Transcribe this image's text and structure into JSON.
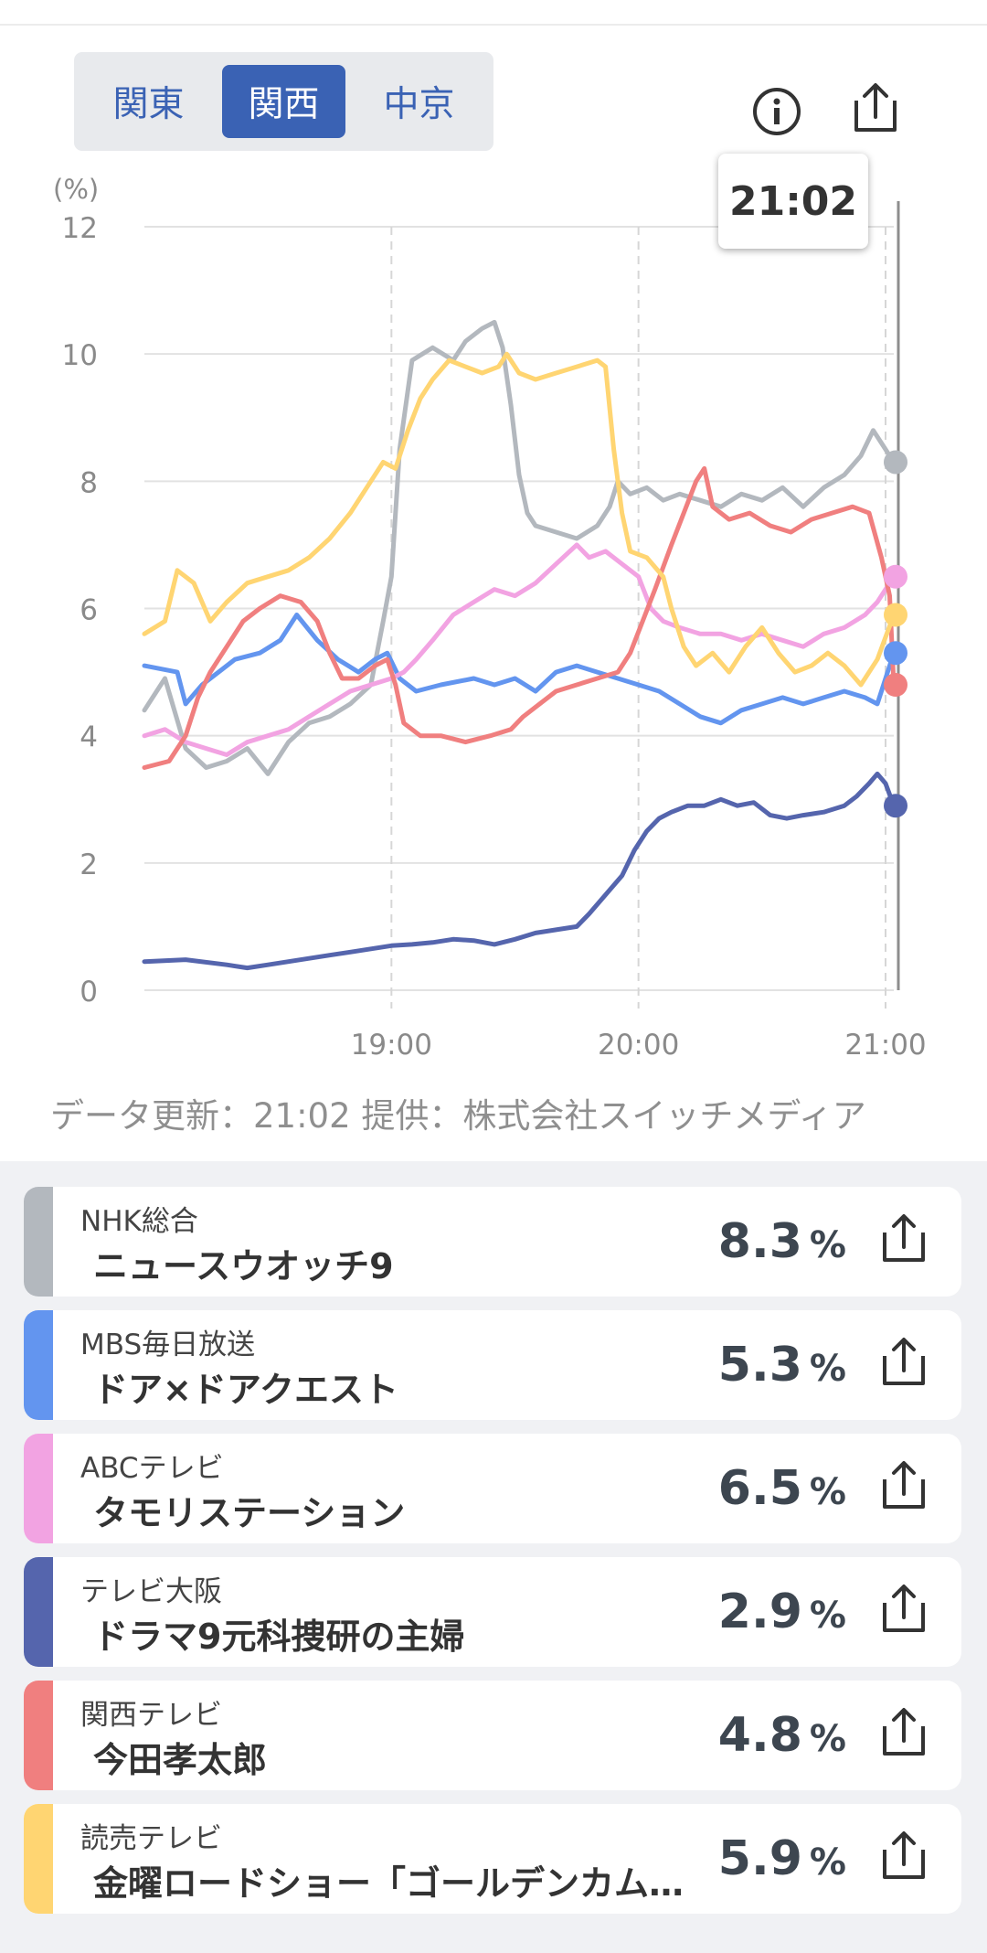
{
  "regions": [
    "関東",
    "関西",
    "中京"
  ],
  "active_region": "関西",
  "tooltip_time": "21:02",
  "chart_data": {
    "type": "line",
    "ylabel": "(%)",
    "ylim": [
      0,
      12
    ],
    "yticks": [
      "0",
      "2",
      "4",
      "6",
      "8",
      "10",
      "12"
    ],
    "xlabels": [
      {
        "t": 60,
        "label": "19:00"
      },
      {
        "t": 120,
        "label": "20:00"
      },
      {
        "t": 180,
        "label": "21:00"
      }
    ],
    "x_range_minutes": [
      0,
      182
    ],
    "series": [
      {
        "name": "NHK総合",
        "color": "#b3b8be",
        "end": 8.3,
        "points": [
          [
            0,
            4.4
          ],
          [
            5,
            4.9
          ],
          [
            10,
            3.8
          ],
          [
            15,
            3.5
          ],
          [
            20,
            3.6
          ],
          [
            25,
            3.8
          ],
          [
            30,
            3.4
          ],
          [
            35,
            3.9
          ],
          [
            40,
            4.2
          ],
          [
            45,
            4.3
          ],
          [
            50,
            4.5
          ],
          [
            55,
            4.8
          ],
          [
            58,
            5.8
          ],
          [
            60,
            6.5
          ],
          [
            62,
            8.5
          ],
          [
            65,
            9.9
          ],
          [
            70,
            10.1
          ],
          [
            75,
            9.9
          ],
          [
            78,
            10.2
          ],
          [
            82,
            10.4
          ],
          [
            85,
            10.5
          ],
          [
            87,
            10.1
          ],
          [
            89,
            9.2
          ],
          [
            91,
            8.1
          ],
          [
            93,
            7.5
          ],
          [
            95,
            7.3
          ],
          [
            100,
            7.2
          ],
          [
            105,
            7.1
          ],
          [
            110,
            7.3
          ],
          [
            113,
            7.6
          ],
          [
            115,
            8.0
          ],
          [
            118,
            7.8
          ],
          [
            122,
            7.9
          ],
          [
            126,
            7.7
          ],
          [
            130,
            7.8
          ],
          [
            135,
            7.7
          ],
          [
            140,
            7.6
          ],
          [
            145,
            7.8
          ],
          [
            150,
            7.7
          ],
          [
            155,
            7.9
          ],
          [
            160,
            7.6
          ],
          [
            165,
            7.9
          ],
          [
            170,
            8.1
          ],
          [
            174,
            8.4
          ],
          [
            177,
            8.8
          ],
          [
            180,
            8.5
          ],
          [
            182,
            8.3
          ]
        ]
      },
      {
        "name": "MBS毎日放送",
        "color": "#6395ef",
        "end": 5.3,
        "points": [
          [
            0,
            5.1
          ],
          [
            8,
            5.0
          ],
          [
            10,
            4.5
          ],
          [
            14,
            4.8
          ],
          [
            18,
            5.0
          ],
          [
            22,
            5.2
          ],
          [
            28,
            5.3
          ],
          [
            33,
            5.5
          ],
          [
            37,
            5.9
          ],
          [
            42,
            5.5
          ],
          [
            47,
            5.2
          ],
          [
            52,
            5.0
          ],
          [
            56,
            5.2
          ],
          [
            59,
            5.3
          ],
          [
            62,
            4.9
          ],
          [
            66,
            4.7
          ],
          [
            72,
            4.8
          ],
          [
            80,
            4.9
          ],
          [
            85,
            4.8
          ],
          [
            90,
            4.9
          ],
          [
            95,
            4.7
          ],
          [
            100,
            5.0
          ],
          [
            105,
            5.1
          ],
          [
            110,
            5.0
          ],
          [
            115,
            4.9
          ],
          [
            120,
            4.8
          ],
          [
            125,
            4.7
          ],
          [
            130,
            4.5
          ],
          [
            135,
            4.3
          ],
          [
            140,
            4.2
          ],
          [
            145,
            4.4
          ],
          [
            150,
            4.5
          ],
          [
            155,
            4.6
          ],
          [
            160,
            4.5
          ],
          [
            165,
            4.6
          ],
          [
            170,
            4.7
          ],
          [
            175,
            4.6
          ],
          [
            178,
            4.5
          ],
          [
            182,
            5.3
          ]
        ]
      },
      {
        "name": "ABCテレビ",
        "color": "#f2a3e2",
        "end": 6.5,
        "points": [
          [
            0,
            4.0
          ],
          [
            5,
            4.1
          ],
          [
            10,
            3.9
          ],
          [
            15,
            3.8
          ],
          [
            20,
            3.7
          ],
          [
            25,
            3.9
          ],
          [
            30,
            4.0
          ],
          [
            35,
            4.1
          ],
          [
            40,
            4.3
          ],
          [
            45,
            4.5
          ],
          [
            50,
            4.7
          ],
          [
            55,
            4.8
          ],
          [
            60,
            4.9
          ],
          [
            63,
            5.0
          ],
          [
            66,
            5.2
          ],
          [
            70,
            5.5
          ],
          [
            75,
            5.9
          ],
          [
            80,
            6.1
          ],
          [
            85,
            6.3
          ],
          [
            90,
            6.2
          ],
          [
            95,
            6.4
          ],
          [
            100,
            6.7
          ],
          [
            105,
            7.0
          ],
          [
            108,
            6.8
          ],
          [
            112,
            6.9
          ],
          [
            116,
            6.7
          ],
          [
            120,
            6.5
          ],
          [
            123,
            6.0
          ],
          [
            126,
            5.8
          ],
          [
            130,
            5.7
          ],
          [
            135,
            5.6
          ],
          [
            140,
            5.6
          ],
          [
            145,
            5.5
          ],
          [
            150,
            5.6
          ],
          [
            155,
            5.5
          ],
          [
            160,
            5.4
          ],
          [
            165,
            5.6
          ],
          [
            170,
            5.7
          ],
          [
            175,
            5.9
          ],
          [
            178,
            6.1
          ],
          [
            182,
            6.5
          ]
        ]
      },
      {
        "name": "テレビ大阪",
        "color": "#5565ad",
        "end": 2.9,
        "points": [
          [
            0,
            0.45
          ],
          [
            10,
            0.48
          ],
          [
            20,
            0.4
          ],
          [
            25,
            0.35
          ],
          [
            30,
            0.4
          ],
          [
            35,
            0.45
          ],
          [
            40,
            0.5
          ],
          [
            45,
            0.55
          ],
          [
            50,
            0.6
          ],
          [
            55,
            0.65
          ],
          [
            60,
            0.7
          ],
          [
            65,
            0.72
          ],
          [
            70,
            0.75
          ],
          [
            75,
            0.8
          ],
          [
            80,
            0.78
          ],
          [
            85,
            0.72
          ],
          [
            90,
            0.8
          ],
          [
            95,
            0.9
          ],
          [
            100,
            0.95
          ],
          [
            105,
            1.0
          ],
          [
            108,
            1.2
          ],
          [
            112,
            1.5
          ],
          [
            116,
            1.8
          ],
          [
            119,
            2.2
          ],
          [
            122,
            2.5
          ],
          [
            125,
            2.7
          ],
          [
            128,
            2.8
          ],
          [
            132,
            2.9
          ],
          [
            136,
            2.9
          ],
          [
            140,
            3.0
          ],
          [
            144,
            2.9
          ],
          [
            148,
            2.95
          ],
          [
            152,
            2.75
          ],
          [
            156,
            2.7
          ],
          [
            160,
            2.75
          ],
          [
            165,
            2.8
          ],
          [
            170,
            2.9
          ],
          [
            173,
            3.05
          ],
          [
            176,
            3.25
          ],
          [
            178,
            3.4
          ],
          [
            180,
            3.25
          ],
          [
            182,
            2.9
          ]
        ]
      },
      {
        "name": "関西テレビ",
        "color": "#f07f7f",
        "end": 4.8,
        "points": [
          [
            0,
            3.5
          ],
          [
            6,
            3.6
          ],
          [
            10,
            4.0
          ],
          [
            13,
            4.6
          ],
          [
            16,
            5.0
          ],
          [
            20,
            5.4
          ],
          [
            24,
            5.8
          ],
          [
            28,
            6.0
          ],
          [
            33,
            6.2
          ],
          [
            38,
            6.1
          ],
          [
            42,
            5.8
          ],
          [
            45,
            5.3
          ],
          [
            48,
            4.9
          ],
          [
            52,
            4.9
          ],
          [
            56,
            5.1
          ],
          [
            59,
            5.2
          ],
          [
            61,
            4.8
          ],
          [
            63,
            4.2
          ],
          [
            67,
            4.0
          ],
          [
            72,
            4.0
          ],
          [
            78,
            3.9
          ],
          [
            84,
            4.0
          ],
          [
            89,
            4.1
          ],
          [
            92,
            4.3
          ],
          [
            96,
            4.5
          ],
          [
            100,
            4.7
          ],
          [
            105,
            4.8
          ],
          [
            110,
            4.9
          ],
          [
            115,
            5.0
          ],
          [
            118,
            5.3
          ],
          [
            121,
            5.8
          ],
          [
            124,
            6.3
          ],
          [
            128,
            7.0
          ],
          [
            131,
            7.5
          ],
          [
            134,
            8.0
          ],
          [
            136,
            8.2
          ],
          [
            138,
            7.6
          ],
          [
            142,
            7.4
          ],
          [
            147,
            7.5
          ],
          [
            152,
            7.3
          ],
          [
            157,
            7.2
          ],
          [
            162,
            7.4
          ],
          [
            167,
            7.5
          ],
          [
            172,
            7.6
          ],
          [
            176,
            7.5
          ],
          [
            179,
            6.8
          ],
          [
            181,
            6.2
          ],
          [
            182,
            4.8
          ]
        ]
      },
      {
        "name": "読売テレビ",
        "color": "#ffd572",
        "end": 5.9,
        "points": [
          [
            0,
            5.6
          ],
          [
            5,
            5.8
          ],
          [
            8,
            6.6
          ],
          [
            12,
            6.4
          ],
          [
            16,
            5.8
          ],
          [
            20,
            6.1
          ],
          [
            25,
            6.4
          ],
          [
            30,
            6.5
          ],
          [
            35,
            6.6
          ],
          [
            40,
            6.8
          ],
          [
            45,
            7.1
          ],
          [
            50,
            7.5
          ],
          [
            54,
            7.9
          ],
          [
            58,
            8.3
          ],
          [
            61,
            8.2
          ],
          [
            64,
            8.8
          ],
          [
            67,
            9.3
          ],
          [
            70,
            9.6
          ],
          [
            74,
            9.9
          ],
          [
            78,
            9.8
          ],
          [
            82,
            9.7
          ],
          [
            86,
            9.8
          ],
          [
            88,
            10.0
          ],
          [
            91,
            9.7
          ],
          [
            95,
            9.6
          ],
          [
            100,
            9.7
          ],
          [
            105,
            9.8
          ],
          [
            110,
            9.9
          ],
          [
            112,
            9.8
          ],
          [
            114,
            8.5
          ],
          [
            116,
            7.5
          ],
          [
            118,
            6.9
          ],
          [
            122,
            6.8
          ],
          [
            126,
            6.5
          ],
          [
            128,
            6.0
          ],
          [
            131,
            5.4
          ],
          [
            134,
            5.1
          ],
          [
            138,
            5.3
          ],
          [
            142,
            5.0
          ],
          [
            146,
            5.4
          ],
          [
            150,
            5.7
          ],
          [
            154,
            5.3
          ],
          [
            158,
            5.0
          ],
          [
            162,
            5.1
          ],
          [
            166,
            5.3
          ],
          [
            170,
            5.1
          ],
          [
            174,
            4.8
          ],
          [
            178,
            5.2
          ],
          [
            182,
            5.9
          ]
        ]
      }
    ]
  },
  "source_text": "データ更新：21:02  提供：株式会社スイッチメディア",
  "programs": [
    {
      "station": "NHK総合",
      "title": "ニュースウオッチ9",
      "rating": "8.3",
      "unit": "%",
      "color": "#b3b8be"
    },
    {
      "station": "MBS毎日放送",
      "title": "ドア×ドアクエスト",
      "rating": "5.3",
      "unit": "%",
      "color": "#6395ef"
    },
    {
      "station": "ABCテレビ",
      "title": "タモリステーション",
      "rating": "6.5",
      "unit": "%",
      "color": "#f2a3e2"
    },
    {
      "station": "テレビ大阪",
      "title": "ドラマ9元科捜研の主婦",
      "rating": "2.9",
      "unit": "%",
      "color": "#5565ad"
    },
    {
      "station": "関西テレビ",
      "title": "今田孝太郎",
      "rating": "4.8",
      "unit": "%",
      "color": "#f07f7f"
    },
    {
      "station": "読売テレビ",
      "title": "金曜ロードショー「ゴールデンカム…",
      "rating": "5.9",
      "unit": "%",
      "color": "#ffd572"
    }
  ]
}
